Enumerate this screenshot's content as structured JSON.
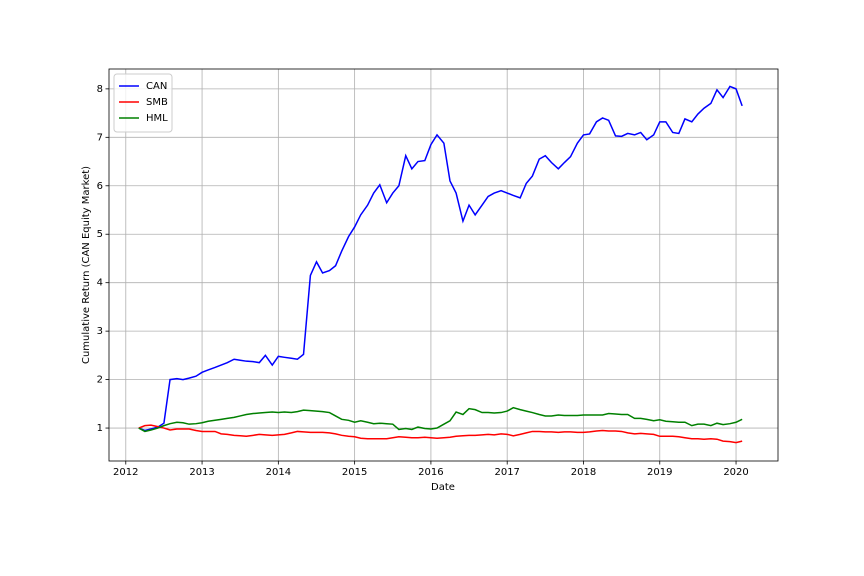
{
  "chart_data": {
    "type": "line",
    "xlabel": "Date",
    "ylabel": "Cumulative Return (CAN Equity Market)",
    "x": [
      2012.17,
      2012.25,
      2012.33,
      2012.42,
      2012.5,
      2012.58,
      2012.67,
      2012.75,
      2012.83,
      2012.92,
      2013.0,
      2013.08,
      2013.17,
      2013.25,
      2013.33,
      2013.42,
      2013.5,
      2013.58,
      2013.67,
      2013.75,
      2013.83,
      2013.92,
      2014.0,
      2014.08,
      2014.17,
      2014.25,
      2014.33,
      2014.42,
      2014.5,
      2014.58,
      2014.67,
      2014.75,
      2014.83,
      2014.92,
      2015.0,
      2015.08,
      2015.17,
      2015.25,
      2015.33,
      2015.42,
      2015.5,
      2015.58,
      2015.67,
      2015.75,
      2015.83,
      2015.92,
      2016.0,
      2016.08,
      2016.17,
      2016.25,
      2016.33,
      2016.42,
      2016.5,
      2016.58,
      2016.67,
      2016.75,
      2016.83,
      2016.92,
      2017.0,
      2017.08,
      2017.17,
      2017.25,
      2017.33,
      2017.42,
      2017.5,
      2017.58,
      2017.67,
      2017.75,
      2017.83,
      2017.92,
      2018.0,
      2018.08,
      2018.17,
      2018.25,
      2018.33,
      2018.42,
      2018.5,
      2018.58,
      2018.67,
      2018.75,
      2018.83,
      2018.92,
      2019.0,
      2019.08,
      2019.17,
      2019.25,
      2019.33,
      2019.42,
      2019.5,
      2019.58,
      2019.67,
      2019.75,
      2019.83,
      2019.92,
      2020.0,
      2020.08
    ],
    "series": [
      {
        "name": "CAN",
        "color": "#0000ff",
        "values": [
          1.0,
          0.95,
          0.98,
          1.02,
          1.1,
          2.0,
          2.02,
          2.0,
          2.03,
          2.07,
          2.15,
          2.2,
          2.25,
          2.3,
          2.35,
          2.42,
          2.4,
          2.38,
          2.37,
          2.35,
          2.5,
          2.3,
          2.48,
          2.46,
          2.44,
          2.42,
          2.52,
          4.15,
          4.43,
          4.2,
          4.25,
          4.35,
          4.65,
          4.95,
          5.15,
          5.4,
          5.6,
          5.85,
          6.02,
          5.65,
          5.85,
          6.0,
          6.62,
          6.35,
          6.5,
          6.52,
          6.85,
          7.05,
          6.88,
          6.1,
          5.85,
          5.27,
          5.6,
          5.4,
          5.6,
          5.78,
          5.85,
          5.9,
          5.85,
          5.8,
          5.75,
          6.05,
          6.2,
          6.55,
          6.62,
          6.48,
          6.35,
          6.48,
          6.6,
          6.88,
          7.05,
          7.07,
          7.32,
          7.4,
          7.35,
          7.03,
          7.02,
          7.08,
          7.05,
          7.1,
          6.95,
          7.05,
          7.32,
          7.32,
          7.1,
          7.08,
          7.38,
          7.32,
          7.48,
          7.6,
          7.7,
          7.98,
          7.82,
          8.05,
          8.0,
          7.65
        ]
      },
      {
        "name": "SMB",
        "color": "#ff0000",
        "values": [
          1.0,
          1.05,
          1.06,
          1.03,
          1.0,
          0.96,
          0.98,
          0.98,
          0.98,
          0.95,
          0.93,
          0.93,
          0.93,
          0.88,
          0.87,
          0.85,
          0.84,
          0.83,
          0.85,
          0.87,
          0.86,
          0.85,
          0.86,
          0.87,
          0.9,
          0.93,
          0.92,
          0.91,
          0.91,
          0.91,
          0.9,
          0.88,
          0.85,
          0.83,
          0.82,
          0.79,
          0.78,
          0.78,
          0.78,
          0.78,
          0.8,
          0.82,
          0.81,
          0.8,
          0.8,
          0.81,
          0.8,
          0.79,
          0.8,
          0.81,
          0.83,
          0.84,
          0.85,
          0.85,
          0.86,
          0.87,
          0.86,
          0.88,
          0.87,
          0.84,
          0.87,
          0.9,
          0.93,
          0.93,
          0.92,
          0.92,
          0.91,
          0.92,
          0.92,
          0.91,
          0.91,
          0.92,
          0.94,
          0.95,
          0.94,
          0.94,
          0.93,
          0.9,
          0.88,
          0.89,
          0.88,
          0.87,
          0.83,
          0.83,
          0.83,
          0.82,
          0.8,
          0.78,
          0.78,
          0.77,
          0.78,
          0.77,
          0.73,
          0.72,
          0.7,
          0.73
        ]
      },
      {
        "name": "HML",
        "color": "#008000",
        "values": [
          1.0,
          0.93,
          0.96,
          1.0,
          1.05,
          1.09,
          1.12,
          1.11,
          1.08,
          1.09,
          1.11,
          1.14,
          1.16,
          1.18,
          1.2,
          1.22,
          1.25,
          1.28,
          1.3,
          1.31,
          1.32,
          1.33,
          1.32,
          1.33,
          1.32,
          1.34,
          1.37,
          1.36,
          1.35,
          1.34,
          1.32,
          1.25,
          1.18,
          1.16,
          1.12,
          1.15,
          1.12,
          1.09,
          1.1,
          1.09,
          1.08,
          0.97,
          0.99,
          0.97,
          1.02,
          0.99,
          0.98,
          1.0,
          1.08,
          1.15,
          1.33,
          1.28,
          1.4,
          1.38,
          1.32,
          1.32,
          1.31,
          1.32,
          1.35,
          1.42,
          1.38,
          1.35,
          1.32,
          1.28,
          1.25,
          1.25,
          1.27,
          1.26,
          1.26,
          1.26,
          1.27,
          1.27,
          1.27,
          1.27,
          1.3,
          1.29,
          1.28,
          1.28,
          1.2,
          1.2,
          1.18,
          1.15,
          1.17,
          1.14,
          1.13,
          1.12,
          1.12,
          1.05,
          1.08,
          1.08,
          1.05,
          1.1,
          1.07,
          1.09,
          1.12,
          1.18
        ]
      }
    ],
    "xlim": [
      2011.78,
      2020.55
    ],
    "xticks": [
      2012,
      2013,
      2014,
      2015,
      2016,
      2017,
      2018,
      2019,
      2020
    ],
    "ylim": [
      0.32,
      8.41
    ],
    "yticks": [
      1,
      2,
      3,
      4,
      5,
      6,
      7,
      8
    ],
    "grid": true,
    "legend": "upper left"
  }
}
